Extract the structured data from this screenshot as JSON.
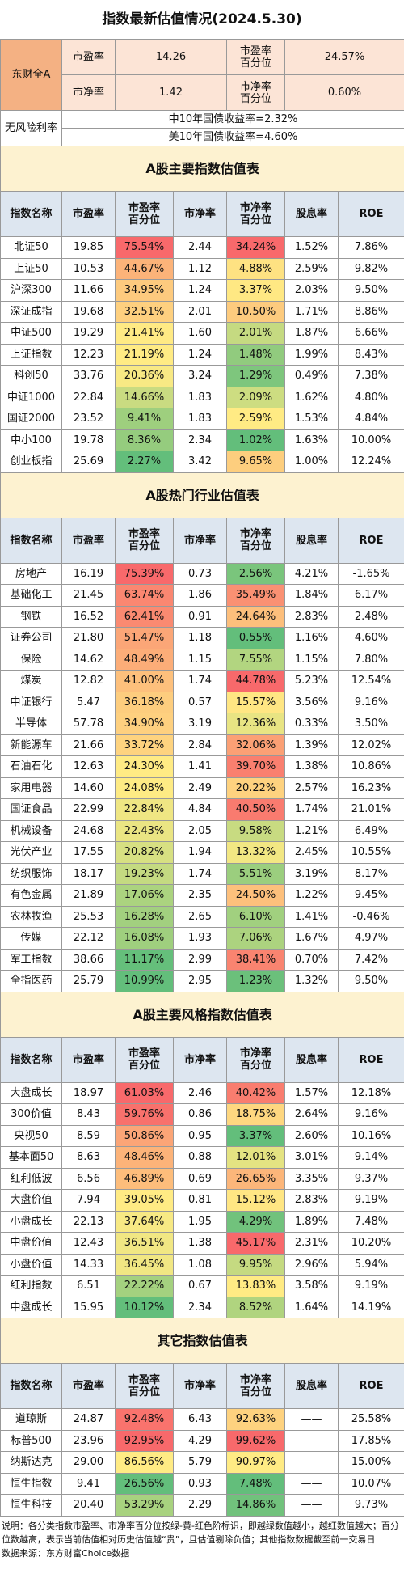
{
  "title": "指数最新估值情况(2024.5.30)",
  "summary": {
    "label": "东财全A",
    "rows": [
      [
        "市盈率",
        "14.26",
        "市盈率\n百分位",
        "24.57%"
      ],
      [
        "市净率",
        "1.42",
        "市净率\n百分位",
        "0.60%"
      ]
    ]
  },
  "risk_free": {
    "label": "无风险利率",
    "rows": [
      "中10年国债收益率=2.32%",
      "美10年国债收益率=4.60%"
    ]
  },
  "sections": [
    {
      "title": "A股主要指数估值表",
      "headers": [
        "指数名称",
        "市盈率",
        "市盈率\n百分位",
        "市净率",
        "市净率\n百分位",
        "股息率",
        "ROE"
      ],
      "rows": [
        [
          "北证50",
          "19.85",
          "75.54%",
          "2.44",
          "34.24%",
          "1.52%",
          "7.86%"
        ],
        [
          "上证50",
          "10.53",
          "44.67%",
          "1.12",
          "4.88%",
          "2.59%",
          "9.82%"
        ],
        [
          "沪深300",
          "11.66",
          "34.95%",
          "1.24",
          "3.37%",
          "2.03%",
          "9.50%"
        ],
        [
          "深证成指",
          "19.68",
          "32.51%",
          "2.01",
          "10.50%",
          "1.71%",
          "8.86%"
        ],
        [
          "中证500",
          "19.29",
          "21.41%",
          "1.60",
          "2.01%",
          "1.87%",
          "6.66%"
        ],
        [
          "上证指数",
          "12.23",
          "21.19%",
          "1.24",
          "1.48%",
          "1.99%",
          "8.43%"
        ],
        [
          "科创50",
          "33.76",
          "20.36%",
          "3.24",
          "1.29%",
          "0.49%",
          "7.38%"
        ],
        [
          "中证1000",
          "22.84",
          "14.66%",
          "1.83",
          "2.09%",
          "1.62%",
          "4.80%"
        ],
        [
          "国证2000",
          "23.52",
          "9.41%",
          "1.83",
          "2.59%",
          "1.53%",
          "4.84%"
        ],
        [
          "中小100",
          "19.78",
          "8.36%",
          "2.34",
          "1.02%",
          "1.63%",
          "10.00%"
        ],
        [
          "创业板指",
          "25.69",
          "2.27%",
          "3.42",
          "9.65%",
          "1.00%",
          "12.24%"
        ]
      ]
    },
    {
      "title": "A股热门行业估值表",
      "headers": [
        "指数名称",
        "市盈率",
        "市盈率\n百分位",
        "市净率",
        "市净率\n百分位",
        "股息率",
        "ROE"
      ],
      "rows": [
        [
          "房地产",
          "16.19",
          "75.39%",
          "0.73",
          "2.56%",
          "4.21%",
          "-1.65%"
        ],
        [
          "基础化工",
          "21.45",
          "63.74%",
          "1.86",
          "35.49%",
          "1.84%",
          "6.17%"
        ],
        [
          "钢铁",
          "16.52",
          "62.41%",
          "0.91",
          "24.64%",
          "2.83%",
          "2.48%"
        ],
        [
          "证券公司",
          "21.80",
          "51.47%",
          "1.18",
          "0.55%",
          "1.16%",
          "4.60%"
        ],
        [
          "保险",
          "14.62",
          "48.49%",
          "1.15",
          "7.55%",
          "1.15%",
          "7.80%"
        ],
        [
          "煤炭",
          "12.82",
          "41.00%",
          "1.74",
          "44.78%",
          "5.23%",
          "12.54%"
        ],
        [
          "中证银行",
          "5.47",
          "36.18%",
          "0.57",
          "15.57%",
          "3.56%",
          "9.16%"
        ],
        [
          "半导体",
          "57.78",
          "34.90%",
          "3.19",
          "12.36%",
          "0.33%",
          "3.50%"
        ],
        [
          "新能源车",
          "21.66",
          "33.72%",
          "2.84",
          "32.06%",
          "1.39%",
          "12.02%"
        ],
        [
          "石油石化",
          "12.63",
          "24.30%",
          "1.41",
          "39.70%",
          "1.38%",
          "10.86%"
        ],
        [
          "家用电器",
          "14.60",
          "24.08%",
          "2.49",
          "20.22%",
          "2.57%",
          "16.23%"
        ],
        [
          "国证食品",
          "22.99",
          "22.84%",
          "4.84",
          "40.50%",
          "1.74%",
          "21.01%"
        ],
        [
          "机械设备",
          "24.68",
          "22.43%",
          "2.05",
          "9.58%",
          "1.21%",
          "6.49%"
        ],
        [
          "光伏产业",
          "17.55",
          "20.82%",
          "1.94",
          "13.32%",
          "2.45%",
          "10.55%"
        ],
        [
          "纺织服饰",
          "18.17",
          "19.23%",
          "1.74",
          "5.51%",
          "3.19%",
          "8.17%"
        ],
        [
          "有色金属",
          "21.89",
          "17.06%",
          "2.35",
          "24.50%",
          "1.22%",
          "9.45%"
        ],
        [
          "农林牧渔",
          "25.53",
          "16.28%",
          "2.65",
          "6.10%",
          "1.41%",
          "-0.46%"
        ],
        [
          "传媒",
          "22.12",
          "16.08%",
          "1.93",
          "7.06%",
          "1.67%",
          "4.97%"
        ],
        [
          "军工指数",
          "38.66",
          "11.17%",
          "2.99",
          "38.41%",
          "0.70%",
          "7.42%"
        ],
        [
          "全指医药",
          "25.79",
          "10.99%",
          "2.95",
          "1.23%",
          "1.32%",
          "9.50%"
        ]
      ]
    },
    {
      "title": "A股主要风格指数估值表",
      "headers": [
        "指数名称",
        "市盈率",
        "市盈率\n百分位",
        "市净率",
        "市净率\n百分位",
        "股息率",
        "ROE"
      ],
      "rows": [
        [
          "大盘成长",
          "18.97",
          "61.03%",
          "2.46",
          "40.42%",
          "1.57%",
          "12.18%"
        ],
        [
          "300价值",
          "8.43",
          "59.76%",
          "0.86",
          "18.75%",
          "2.64%",
          "9.16%"
        ],
        [
          "央视50",
          "8.59",
          "50.86%",
          "0.95",
          "3.37%",
          "2.60%",
          "10.16%"
        ],
        [
          "基本面50",
          "8.63",
          "48.46%",
          "0.88",
          "12.01%",
          "3.01%",
          "9.14%"
        ],
        [
          "红利低波",
          "6.56",
          "46.89%",
          "0.69",
          "26.65%",
          "3.35%",
          "9.37%"
        ],
        [
          "大盘价值",
          "7.94",
          "39.05%",
          "0.81",
          "15.12%",
          "2.83%",
          "9.19%"
        ],
        [
          "小盘成长",
          "22.13",
          "37.64%",
          "1.95",
          "4.29%",
          "1.89%",
          "7.48%"
        ],
        [
          "中盘价值",
          "12.43",
          "36.51%",
          "1.38",
          "45.17%",
          "2.31%",
          "10.20%"
        ],
        [
          "小盘价值",
          "14.33",
          "36.45%",
          "1.08",
          "9.95%",
          "2.96%",
          "5.94%"
        ],
        [
          "红利指数",
          "6.51",
          "22.22%",
          "0.67",
          "13.83%",
          "3.58%",
          "9.19%"
        ],
        [
          "中盘成长",
          "15.95",
          "10.12%",
          "2.34",
          "8.52%",
          "1.64%",
          "14.19%"
        ]
      ]
    },
    {
      "title": "其它指数估值表",
      "headers": [
        "指数名称",
        "市盈率",
        "市盈率\n百分位",
        "市净率",
        "市净率\n百分位",
        "股息率",
        "ROE"
      ],
      "rows": [
        [
          "道琼斯",
          "24.87",
          "92.48%",
          "6.43",
          "92.63%",
          "——",
          "25.58%"
        ],
        [
          "标普500",
          "23.96",
          "92.95%",
          "4.29",
          "99.62%",
          "——",
          "17.85%"
        ],
        [
          "纳斯达克",
          "29.00",
          "86.56%",
          "5.79",
          "90.97%",
          "——",
          "15.00%"
        ],
        [
          "恒生指数",
          "9.41",
          "26.56%",
          "0.93",
          "7.48%",
          "——",
          "10.07%"
        ],
        [
          "恒生科技",
          "20.40",
          "53.29%",
          "2.29",
          "14.86%",
          "——",
          "9.73%"
        ]
      ]
    }
  ],
  "notes": [
    "说明：各分类指数市盈率、市净率百分位按绿-黄-红色阶标识，即越绿数值越小，越红数值越大；百分位数越高，表示当前估值相对历史估值越“贵”，且估值剔除负值；其他指数数据截至前一交易日",
    "数据来源：东方财富Choice数据"
  ]
}
